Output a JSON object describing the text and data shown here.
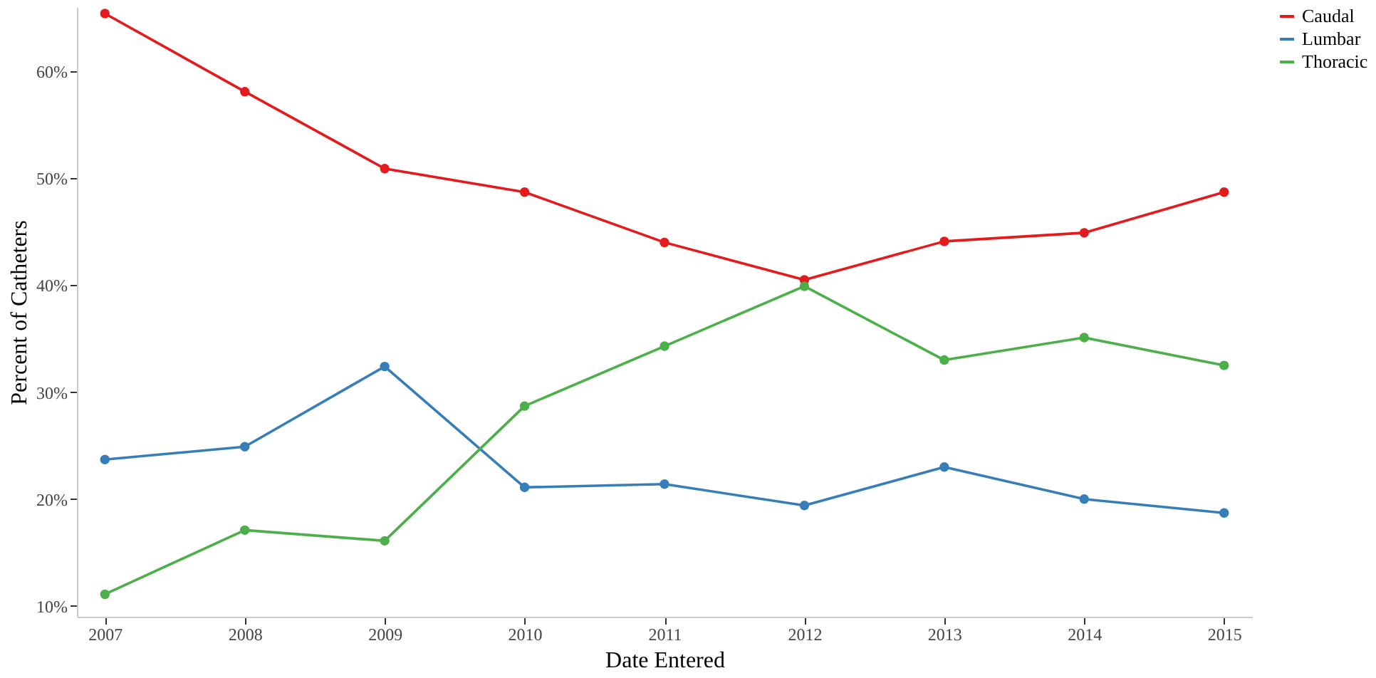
{
  "chart_data": {
    "type": "line",
    "xlabel": "Date Entered",
    "ylabel": "Percent of Catheters",
    "x": [
      2007,
      2008,
      2009,
      2010,
      2011,
      2012,
      2013,
      2014,
      2015
    ],
    "series": [
      {
        "name": "Caudal",
        "color": "#e41a1c",
        "values": [
          65.4,
          58.1,
          50.9,
          48.7,
          44.0,
          40.5,
          44.1,
          44.9,
          48.7
        ]
      },
      {
        "name": "Lumbar",
        "color": "#377eb8",
        "values": [
          23.7,
          24.9,
          32.4,
          21.1,
          21.4,
          19.4,
          23.0,
          20.0,
          18.7
        ]
      },
      {
        "name": "Thoracic",
        "color": "#4daf4a",
        "values": [
          11.1,
          17.1,
          16.1,
          28.7,
          34.3,
          39.9,
          33.0,
          35.1,
          32.5
        ]
      }
    ],
    "xlim": [
      2006.8,
      2015.2
    ],
    "xticks": [
      2007,
      2008,
      2009,
      2010,
      2011,
      2012,
      2013,
      2014,
      2015
    ],
    "ylim": [
      9,
      66
    ],
    "yticks": [
      {
        "value": 10,
        "label": "10%"
      },
      {
        "value": 20,
        "label": "20%"
      },
      {
        "value": 30,
        "label": "30%"
      },
      {
        "value": 40,
        "label": "40%"
      },
      {
        "value": 50,
        "label": "50%"
      },
      {
        "value": 60,
        "label": "60%"
      }
    ],
    "marker": "circle",
    "line_style": "solid",
    "legend": "right",
    "grid": false
  }
}
